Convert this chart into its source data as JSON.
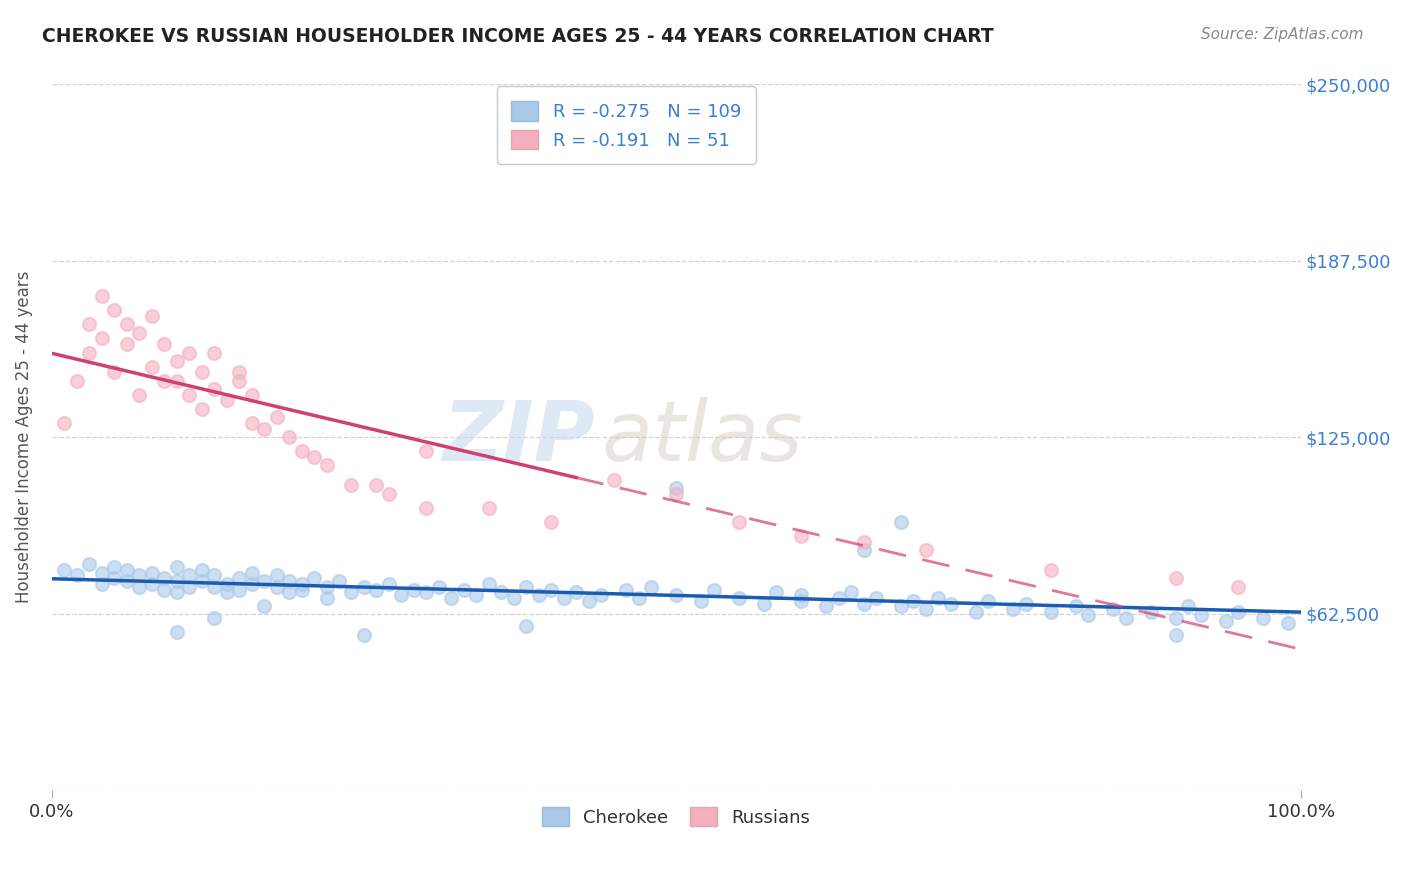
{
  "title": "CHEROKEE VS RUSSIAN HOUSEHOLDER INCOME AGES 25 - 44 YEARS CORRELATION CHART",
  "source": "Source: ZipAtlas.com",
  "ylabel": "Householder Income Ages 25 - 44 years",
  "xlim": [
    0,
    1
  ],
  "ylim": [
    0,
    250000
  ],
  "yticks": [
    0,
    62500,
    125000,
    187500,
    250000
  ],
  "ytick_labels": [
    "",
    "$62,500",
    "$125,000",
    "$187,500",
    "$250,000"
  ],
  "xtick_labels": [
    "0.0%",
    "100.0%"
  ],
  "cherokee_color": "#aac8e8",
  "russian_color": "#f4b0c0",
  "cherokee_line_color": "#1a5cb0",
  "russian_line_color": "#d04070",
  "russian_line_solid_end": 0.42,
  "R_cherokee": -0.275,
  "N_cherokee": 109,
  "R_russian": -0.191,
  "N_russian": 51,
  "background_color": "#ffffff",
  "grid_color": "#c8c8c8",
  "watermark_zip": "ZIP",
  "watermark_atlas": "atlas",
  "cherokee_x": [
    0.01,
    0.02,
    0.03,
    0.04,
    0.04,
    0.05,
    0.05,
    0.06,
    0.06,
    0.07,
    0.07,
    0.08,
    0.08,
    0.09,
    0.09,
    0.1,
    0.1,
    0.1,
    0.11,
    0.11,
    0.12,
    0.12,
    0.13,
    0.13,
    0.14,
    0.14,
    0.15,
    0.15,
    0.16,
    0.16,
    0.17,
    0.18,
    0.18,
    0.19,
    0.19,
    0.2,
    0.2,
    0.21,
    0.22,
    0.22,
    0.23,
    0.24,
    0.25,
    0.26,
    0.27,
    0.28,
    0.29,
    0.3,
    0.31,
    0.32,
    0.33,
    0.34,
    0.35,
    0.36,
    0.37,
    0.38,
    0.39,
    0.4,
    0.41,
    0.42,
    0.43,
    0.44,
    0.46,
    0.47,
    0.48,
    0.5,
    0.52,
    0.53,
    0.55,
    0.57,
    0.58,
    0.6,
    0.6,
    0.62,
    0.63,
    0.64,
    0.65,
    0.66,
    0.68,
    0.69,
    0.7,
    0.71,
    0.72,
    0.74,
    0.75,
    0.77,
    0.78,
    0.8,
    0.82,
    0.83,
    0.85,
    0.86,
    0.88,
    0.9,
    0.91,
    0.92,
    0.94,
    0.95,
    0.97,
    0.99,
    0.5,
    0.68,
    0.9,
    0.65,
    0.38,
    0.25,
    0.1,
    0.13,
    0.17
  ],
  "cherokee_y": [
    78000,
    76000,
    80000,
    73000,
    77000,
    75000,
    79000,
    74000,
    78000,
    76000,
    72000,
    77000,
    73000,
    75000,
    71000,
    79000,
    74000,
    70000,
    76000,
    72000,
    74000,
    78000,
    72000,
    76000,
    73000,
    70000,
    75000,
    71000,
    73000,
    77000,
    74000,
    72000,
    76000,
    70000,
    74000,
    73000,
    71000,
    75000,
    72000,
    68000,
    74000,
    70000,
    72000,
    71000,
    73000,
    69000,
    71000,
    70000,
    72000,
    68000,
    71000,
    69000,
    73000,
    70000,
    68000,
    72000,
    69000,
    71000,
    68000,
    70000,
    67000,
    69000,
    71000,
    68000,
    72000,
    69000,
    67000,
    71000,
    68000,
    66000,
    70000,
    67000,
    69000,
    65000,
    68000,
    70000,
    66000,
    68000,
    65000,
    67000,
    64000,
    68000,
    66000,
    63000,
    67000,
    64000,
    66000,
    63000,
    65000,
    62000,
    64000,
    61000,
    63000,
    61000,
    65000,
    62000,
    60000,
    63000,
    61000,
    59000,
    107000,
    95000,
    55000,
    85000,
    58000,
    55000,
    56000,
    61000,
    65000
  ],
  "russian_x": [
    0.01,
    0.02,
    0.03,
    0.03,
    0.04,
    0.04,
    0.05,
    0.05,
    0.06,
    0.06,
    0.07,
    0.07,
    0.08,
    0.08,
    0.09,
    0.09,
    0.1,
    0.1,
    0.11,
    0.11,
    0.12,
    0.12,
    0.13,
    0.13,
    0.14,
    0.15,
    0.15,
    0.16,
    0.16,
    0.17,
    0.18,
    0.19,
    0.2,
    0.21,
    0.22,
    0.24,
    0.26,
    0.27,
    0.3,
    0.35,
    0.4,
    0.45,
    0.5,
    0.55,
    0.6,
    0.65,
    0.7,
    0.8,
    0.9,
    0.95,
    0.3
  ],
  "russian_y": [
    130000,
    145000,
    155000,
    165000,
    160000,
    175000,
    148000,
    170000,
    165000,
    158000,
    140000,
    162000,
    150000,
    168000,
    145000,
    158000,
    152000,
    145000,
    140000,
    155000,
    148000,
    135000,
    142000,
    155000,
    138000,
    145000,
    148000,
    130000,
    140000,
    128000,
    132000,
    125000,
    120000,
    118000,
    115000,
    108000,
    108000,
    105000,
    100000,
    100000,
    95000,
    110000,
    105000,
    95000,
    90000,
    88000,
    85000,
    78000,
    75000,
    72000,
    120000
  ]
}
